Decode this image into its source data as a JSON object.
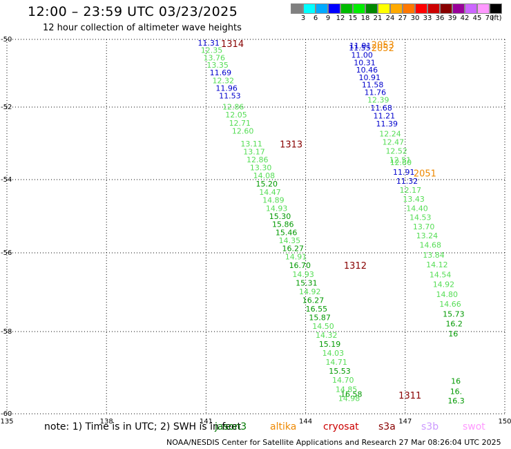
{
  "title": "12:00 – 23:59 UTC 03/23/2025",
  "subtitle": "12 hour collection of altimeter wave heights",
  "legend": {
    "unit": "(ft)",
    "colors": [
      "#808080",
      "#00ffff",
      "#00aaff",
      "#0000ff",
      "#00bb00",
      "#00ee00",
      "#008800",
      "#ffff00",
      "#ffaa00",
      "#ff7700",
      "#ff0000",
      "#cc0000",
      "#880000",
      "#990099",
      "#cc66ff",
      "#ff99ff",
      "#000000"
    ],
    "ticks": [
      "3",
      "6",
      "9",
      "12",
      "15",
      "18",
      "21",
      "24",
      "27",
      "30",
      "33",
      "36",
      "39",
      "42",
      "45",
      "70"
    ]
  },
  "axes": {
    "lat_labels": [
      "-50",
      "-52",
      "-54",
      "-56",
      "-58",
      "-60"
    ],
    "lon_labels": [
      "135",
      "138",
      "141",
      "144",
      "147",
      "150"
    ]
  },
  "tracks": [
    {
      "id": "1314",
      "label_color": "#880000",
      "points": [
        {
          "lat": -50.1,
          "lon": 140.75,
          "v": "11.31",
          "c": "#0000cc"
        },
        {
          "lat": -50.32,
          "lon": 140.84,
          "v": "12.35",
          "c": "#55dd55"
        },
        {
          "lat": -50.54,
          "lon": 140.92,
          "v": "13.76",
          "c": "#55dd55"
        },
        {
          "lat": -50.76,
          "lon": 141.02,
          "v": "13.35",
          "c": "#55dd55"
        },
        {
          "lat": -50.98,
          "lon": 141.11,
          "v": "11.69",
          "c": "#0000cc"
        },
        {
          "lat": -51.21,
          "lon": 141.19,
          "v": "12.32",
          "c": "#55dd55"
        },
        {
          "lat": -51.44,
          "lon": 141.29,
          "v": "11.96",
          "c": "#0000cc"
        },
        {
          "lat": -51.66,
          "lon": 141.39,
          "v": "11.53",
          "c": "#0000cc"
        },
        {
          "lat": -51.99,
          "lon": 141.49,
          "v": "12.86",
          "c": "#55dd55"
        },
        {
          "lat": -52.21,
          "lon": 141.58,
          "v": "12.05",
          "c": "#55dd55"
        },
        {
          "lat": -52.44,
          "lon": 141.69,
          "v": "12.71",
          "c": "#55dd55"
        },
        {
          "lat": -52.66,
          "lon": 141.78,
          "v": "12.60",
          "c": "#55dd55"
        }
      ]
    },
    {
      "id": "1313",
      "label_color": "#880000",
      "points": [
        {
          "lat": -53.01,
          "lon": 142.04,
          "v": "13.11",
          "c": "#55dd55"
        },
        {
          "lat": -53.23,
          "lon": 142.12,
          "v": "13.17",
          "c": "#55dd55"
        },
        {
          "lat": -53.45,
          "lon": 142.22,
          "v": "12.86",
          "c": "#55dd55"
        },
        {
          "lat": -53.67,
          "lon": 142.32,
          "v": "13.30",
          "c": "#55dd55"
        },
        {
          "lat": -53.89,
          "lon": 142.42,
          "v": "14.08",
          "c": "#55dd55"
        },
        {
          "lat": -54.11,
          "lon": 142.5,
          "v": "15.20",
          "c": "#009900"
        },
        {
          "lat": -54.34,
          "lon": 142.6,
          "v": "14.47",
          "c": "#55dd55"
        },
        {
          "lat": -54.56,
          "lon": 142.7,
          "v": "14.89",
          "c": "#55dd55"
        },
        {
          "lat": -54.78,
          "lon": 142.8,
          "v": "14.93",
          "c": "#55dd55"
        },
        {
          "lat": -55.0,
          "lon": 142.9,
          "v": "15.30",
          "c": "#009900"
        },
        {
          "lat": -55.22,
          "lon": 142.99,
          "v": "15.86",
          "c": "#009900"
        },
        {
          "lat": -55.44,
          "lon": 143.09,
          "v": "15.46",
          "c": "#009900"
        },
        {
          "lat": -55.66,
          "lon": 143.19,
          "v": "14.35",
          "c": "#55dd55"
        },
        {
          "lat": -55.88,
          "lon": 143.29,
          "v": "16.27",
          "c": "#009900"
        },
        {
          "lat": -56.1,
          "lon": 143.38,
          "v": "14.91",
          "c": "#55dd55"
        }
      ]
    },
    {
      "id": "1312",
      "label_color": "#880000",
      "points": [
        {
          "lat": -56.32,
          "lon": 143.5,
          "v": "16.70",
          "c": "#009900"
        },
        {
          "lat": -56.54,
          "lon": 143.6,
          "v": "14.93",
          "c": "#55dd55"
        },
        {
          "lat": -56.76,
          "lon": 143.7,
          "v": "15.31",
          "c": "#009900"
        },
        {
          "lat": -56.98,
          "lon": 143.8,
          "v": "14.92",
          "c": "#55dd55"
        },
        {
          "lat": -57.2,
          "lon": 143.9,
          "v": "16.27",
          "c": "#009900"
        },
        {
          "lat": -57.42,
          "lon": 144.0,
          "v": "16.55",
          "c": "#009900"
        },
        {
          "lat": -57.64,
          "lon": 144.1,
          "v": "15.87",
          "c": "#009900"
        },
        {
          "lat": -57.86,
          "lon": 144.2,
          "v": "14.50",
          "c": "#55dd55"
        },
        {
          "lat": -58.08,
          "lon": 144.3,
          "v": "14.32",
          "c": "#55dd55"
        },
        {
          "lat": -58.3,
          "lon": 144.4,
          "v": "15.19",
          "c": "#009900"
        },
        {
          "lat": -58.52,
          "lon": 144.5,
          "v": "14.03",
          "c": "#55dd55"
        },
        {
          "lat": -58.74,
          "lon": 144.6,
          "v": "14.71",
          "c": "#55dd55"
        },
        {
          "lat": -58.96,
          "lon": 144.7,
          "v": "15.53",
          "c": "#009900"
        },
        {
          "lat": -59.18,
          "lon": 144.8,
          "v": "14.70",
          "c": "#55dd55"
        },
        {
          "lat": -59.4,
          "lon": 144.9,
          "v": "14.85",
          "c": "#55dd55"
        },
        {
          "lat": -59.62,
          "lon": 144.98,
          "v": "14.98",
          "c": "#55dd55"
        }
      ]
    },
    {
      "id": "1311",
      "label_color": "#880000",
      "points": [
        {
          "lat": -59.52,
          "lon": 145.05,
          "v": "16.58",
          "c": "#009900"
        }
      ]
    },
    {
      "id": "2052",
      "label_color": "#ee8800",
      "points": [
        {
          "lat": -50.18,
          "lon": 145.32,
          "v": "11.91",
          "c": "#0000cc"
        },
        {
          "lat": -50.24,
          "lon": 145.3,
          "v": "11.55",
          "c": "#0000cc"
        },
        {
          "lat": -50.46,
          "lon": 145.37,
          "v": "11.00",
          "c": "#0000cc"
        },
        {
          "lat": -50.68,
          "lon": 145.45,
          "v": "10.31",
          "c": "#0000cc"
        },
        {
          "lat": -50.9,
          "lon": 145.52,
          "v": "10.46",
          "c": "#0000cc"
        },
        {
          "lat": -51.12,
          "lon": 145.6,
          "v": "10.91",
          "c": "#0000cc"
        },
        {
          "lat": -51.34,
          "lon": 145.69,
          "v": "11.58",
          "c": "#0000cc"
        },
        {
          "lat": -51.56,
          "lon": 145.77,
          "v": "11.76",
          "c": "#0000cc"
        },
        {
          "lat": -51.79,
          "lon": 145.86,
          "v": "12.39",
          "c": "#55dd55"
        },
        {
          "lat": -52.02,
          "lon": 145.95,
          "v": "11.68",
          "c": "#0000cc"
        },
        {
          "lat": -52.24,
          "lon": 146.04,
          "v": "11.21",
          "c": "#0000cc"
        },
        {
          "lat": -52.46,
          "lon": 146.12,
          "v": "11.39",
          "c": "#0000cc"
        },
        {
          "lat": -52.73,
          "lon": 146.22,
          "v": "12.24",
          "c": "#55dd55"
        },
        {
          "lat": -52.96,
          "lon": 146.31,
          "v": "12.47",
          "c": "#55dd55"
        },
        {
          "lat": -53.21,
          "lon": 146.41,
          "v": "12.52",
          "c": "#55dd55"
        },
        {
          "lat": -53.46,
          "lon": 146.52,
          "v": "12.51",
          "c": "#55dd55"
        },
        {
          "lat": -53.52,
          "lon": 146.54,
          "v": "12.80",
          "c": "#55dd55"
        }
      ]
    },
    {
      "id": "2051",
      "label_color": "#ee8800",
      "points": [
        {
          "lat": -53.79,
          "lon": 146.63,
          "v": "11.91",
          "c": "#0000cc"
        },
        {
          "lat": -54.04,
          "lon": 146.73,
          "v": "11.32",
          "c": "#0000cc"
        },
        {
          "lat": -54.28,
          "lon": 146.83,
          "v": "12.17",
          "c": "#55dd55"
        },
        {
          "lat": -54.53,
          "lon": 146.93,
          "v": "13.43",
          "c": "#55dd55"
        },
        {
          "lat": -54.78,
          "lon": 147.03,
          "v": "14.40",
          "c": "#55dd55"
        },
        {
          "lat": -55.03,
          "lon": 147.13,
          "v": "14.53",
          "c": "#55dd55"
        },
        {
          "lat": -55.28,
          "lon": 147.23,
          "v": "13.70",
          "c": "#55dd55"
        },
        {
          "lat": -55.53,
          "lon": 147.33,
          "v": "13.24",
          "c": "#55dd55"
        },
        {
          "lat": -55.78,
          "lon": 147.43,
          "v": "14.68",
          "c": "#55dd55"
        },
        {
          "lat": -56.05,
          "lon": 147.53,
          "v": "13.84",
          "c": "#55dd55"
        },
        {
          "lat": -56.3,
          "lon": 147.63,
          "v": "14.12",
          "c": "#55dd55"
        },
        {
          "lat": -56.55,
          "lon": 147.73,
          "v": "14.54",
          "c": "#55dd55"
        },
        {
          "lat": -56.8,
          "lon": 147.83,
          "v": "14.92",
          "c": "#55dd55"
        },
        {
          "lat": -57.05,
          "lon": 147.93,
          "v": "14.80",
          "c": "#55dd55"
        },
        {
          "lat": -57.3,
          "lon": 148.03,
          "v": "14.66",
          "c": "#55dd55"
        },
        {
          "lat": -57.55,
          "lon": 148.13,
          "v": "15.73",
          "c": "#009900"
        },
        {
          "lat": -57.8,
          "lon": 148.22,
          "v": "16.2",
          "c": "#009900"
        },
        {
          "lat": -58.05,
          "lon": 148.3,
          "v": "16",
          "c": "#009900"
        }
      ]
    },
    {
      "id": "2050",
      "label_color": "#ee8800",
      "points": [
        {
          "lat": -59.2,
          "lon": 148.38,
          "v": "16",
          "c": "#009900"
        },
        {
          "lat": -59.45,
          "lon": 148.35,
          "v": "16.",
          "c": "#009900"
        },
        {
          "lat": -59.68,
          "lon": 148.28,
          "v": "16.3",
          "c": "#009900"
        }
      ]
    }
  ],
  "track_labels": [
    {
      "text": "1314",
      "lat": -50.12,
      "lon": 141.45,
      "color": "#880000"
    },
    {
      "text": "1313",
      "lat": -53.02,
      "lon": 143.22,
      "color": "#880000"
    },
    {
      "text": "1312",
      "lat": -56.32,
      "lon": 145.15,
      "color": "#880000"
    },
    {
      "text": "1311",
      "lat": -59.55,
      "lon": 146.8,
      "color": "#880000"
    },
    {
      "text": "2053",
      "lat": -50.15,
      "lon": 145.98,
      "color": "#ee8800"
    },
    {
      "text": "2052",
      "lat": -50.24,
      "lon": 145.98,
      "color": "#ee8800"
    },
    {
      "text": "2051",
      "lat": -53.82,
      "lon": 147.25,
      "color": "#ee8800"
    }
  ],
  "note": {
    "text": "note: 1) Time is in UTC; 2) SWH is in feet",
    "missions": [
      {
        "name": "jason3",
        "color": "#007700"
      },
      {
        "name": "altika",
        "color": "#ee8800"
      },
      {
        "name": "cryosat",
        "color": "#cc0000"
      },
      {
        "name": "s3a",
        "color": "#880000"
      },
      {
        "name": "s3b",
        "color": "#cc99ff"
      },
      {
        "name": "swot",
        "color": "#ff99ff"
      }
    ]
  },
  "credit": "NOAA/NESDIS Center for Satellite Applications and Research   27 Mar 08:26:04 UTC 2025"
}
